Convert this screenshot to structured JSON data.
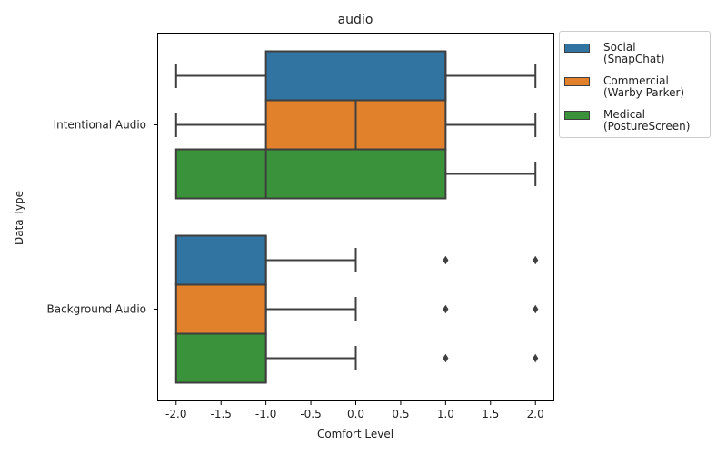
{
  "chart_data": {
    "type": "box",
    "title": "audio",
    "xlabel": "Comfort Level",
    "ylabel": "Data Type",
    "xlim": [
      -2.2,
      2.2
    ],
    "xticks": [
      -2.0,
      -1.5,
      -1.0,
      -0.5,
      0.0,
      0.5,
      1.0,
      1.5,
      2.0
    ],
    "xtick_labels": [
      "-2.0",
      "-1.5",
      "-1.0",
      "-0.5",
      "0.0",
      "0.5",
      "1.0",
      "1.5",
      "2.0"
    ],
    "categories": [
      "Intentional Audio",
      "Background Audio"
    ],
    "legend_position": "outside-top-right",
    "series": [
      {
        "name": "Social\n (SnapChat)",
        "color": "#3274a1",
        "boxes": [
          {
            "whisker_low": -2,
            "q1": -1,
            "median": 1,
            "q3": 1,
            "whisker_high": 2,
            "outliers": []
          },
          {
            "whisker_low": -2,
            "q1": -2,
            "median": -1,
            "q3": -1,
            "whisker_high": 0,
            "outliers": [
              1,
              2
            ]
          }
        ]
      },
      {
        "name": "Commercial\n (Warby Parker)",
        "color": "#e1812c",
        "boxes": [
          {
            "whisker_low": -2,
            "q1": -1,
            "median": 0,
            "q3": 1,
            "whisker_high": 2,
            "outliers": []
          },
          {
            "whisker_low": -2,
            "q1": -2,
            "median": -1,
            "q3": -1,
            "whisker_high": 0,
            "outliers": [
              1,
              2
            ]
          }
        ]
      },
      {
        "name": "Medical\n (PostureScreen)",
        "color": "#3a923a",
        "boxes": [
          {
            "whisker_low": -2,
            "q1": -2,
            "median": -1,
            "q3": 1,
            "whisker_high": 2,
            "outliers": []
          },
          {
            "whisker_low": -2,
            "q1": -2,
            "median": -1,
            "q3": -1,
            "whisker_high": 0,
            "outliers": [
              1,
              2
            ]
          }
        ]
      }
    ]
  }
}
